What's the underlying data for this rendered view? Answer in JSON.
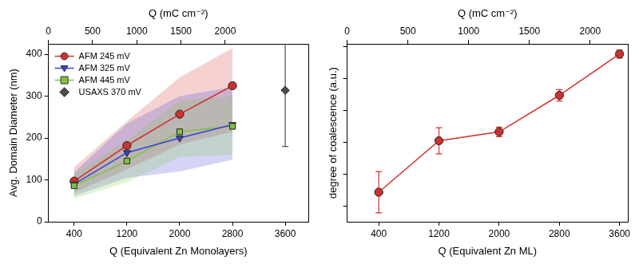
{
  "chart_data": [
    {
      "type": "line",
      "xlabel": "Q (Equivalent Zn Monolayers)",
      "x2label": "Q (mC cm⁻²)",
      "ylabel": "Avg. Domain Diameter (nm)",
      "xlim": [
        10,
        3950
      ],
      "xticks": [
        400,
        1200,
        2000,
        2800,
        3600
      ],
      "x2lim": [
        0,
        2940
      ],
      "x2ticks": [
        0,
        500,
        1000,
        1500,
        2000
      ],
      "ylim": [
        0,
        425
      ],
      "yticks": [
        0,
        100,
        200,
        300,
        400
      ],
      "grid": false,
      "legend": "upper left",
      "series": [
        {
          "name": "AFM 245 mV",
          "type": "line",
          "color": "#d0312d",
          "marker": "circle",
          "x": [
            400,
            1200,
            2000,
            2800
          ],
          "values": [
            97,
            182,
            257,
            325
          ],
          "lower": [
            70,
            125,
            185,
            215
          ],
          "upper": [
            130,
            240,
            345,
            415
          ]
        },
        {
          "name": "AFM 325 mV",
          "type": "line",
          "color": "#3a3fd8",
          "marker": "triangle_down",
          "x": [
            400,
            1200,
            2000,
            2800
          ],
          "values": [
            90,
            165,
            200,
            232
          ],
          "lower": [
            62,
            105,
            120,
            148
          ],
          "upper": [
            118,
            235,
            300,
            322
          ]
        },
        {
          "name": "AFM 445 mV",
          "type": "line",
          "color": "#7dc242",
          "marker": "square",
          "x": [
            400,
            1200,
            2000,
            2800
          ],
          "values": [
            86,
            145,
            215,
            228
          ],
          "lower": [
            55,
            95,
            155,
            160
          ],
          "upper": [
            115,
            195,
            290,
            300
          ]
        },
        {
          "name": "USAXS 370 mV",
          "type": "scatter",
          "color": "#4d4d4d",
          "marker": "diamond",
          "x": [
            3600
          ],
          "values": [
            314
          ],
          "errors": [
            134
          ]
        }
      ]
    },
    {
      "type": "line",
      "xlabel": "Q (Equivalent Zn ML)",
      "x2label": "Q (mC cm⁻²)",
      "ylabel": "degree of coalescence (a.u.)",
      "xlim": [
        -20,
        3710
      ],
      "xticks": [
        400,
        1200,
        2000,
        2800,
        3600
      ],
      "x2lim": [
        0,
        2310
      ],
      "x2ticks": [
        0,
        500,
        1000,
        1500,
        2000
      ],
      "ylim": [
        0,
        5.6
      ],
      "yticks": [
        0.5,
        1.5,
        2.5,
        3.5,
        4.5,
        5.5
      ],
      "tick_labels": "x",
      "grid": false,
      "series": [
        {
          "color": "#d0312d",
          "marker": "circle",
          "x": [
            400,
            1200,
            2000,
            2800,
            3600
          ],
          "values": [
            0.93,
            2.55,
            2.83,
            3.98,
            5.28
          ],
          "errors": [
            0.65,
            0.41,
            0.15,
            0.18,
            0.13
          ]
        }
      ]
    }
  ]
}
